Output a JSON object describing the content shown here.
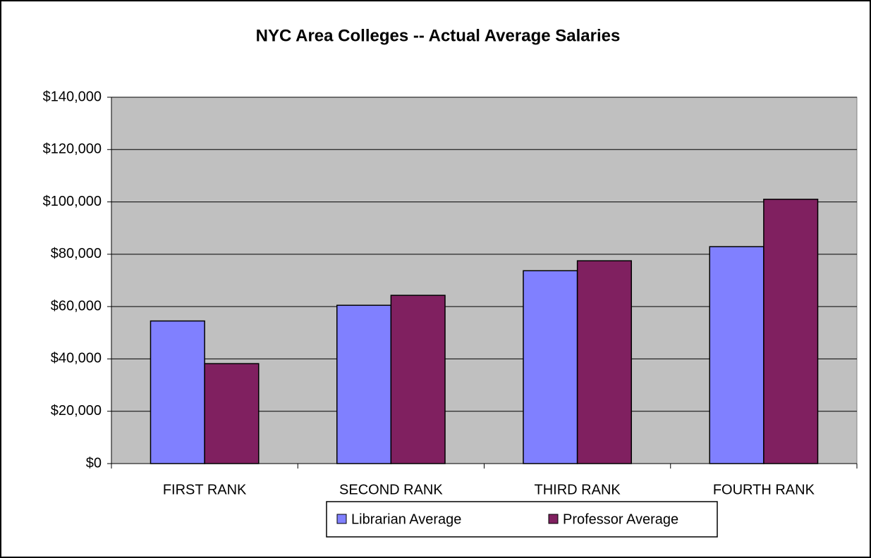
{
  "chart_data": {
    "type": "bar",
    "title": "NYC Area Colleges -- Actual Average Salaries",
    "categories": [
      "FIRST RANK",
      "SECOND RANK",
      "THIRD RANK",
      "FOURTH RANK"
    ],
    "series": [
      {
        "name": "Librarian Average",
        "color": "#8080ff",
        "values": [
          54500,
          60500,
          73700,
          82900
        ]
      },
      {
        "name": "Professor Average",
        "color": "#802060",
        "values": [
          38200,
          64300,
          77500,
          101000
        ]
      }
    ],
    "ylim": [
      0,
      140000
    ],
    "yticks": [
      {
        "value": 0,
        "label": "$0"
      },
      {
        "value": 20000,
        "label": "$20,000"
      },
      {
        "value": 40000,
        "label": "$40,000"
      },
      {
        "value": 60000,
        "label": "$60,000"
      },
      {
        "value": 80000,
        "label": "$80,000"
      },
      {
        "value": 100000,
        "label": "$100,000"
      },
      {
        "value": 120000,
        "label": "$120,000"
      },
      {
        "value": 140000,
        "label": "$140,000"
      }
    ],
    "grid": true,
    "plot_background": "#c0c0c0",
    "legend": "bottom"
  }
}
